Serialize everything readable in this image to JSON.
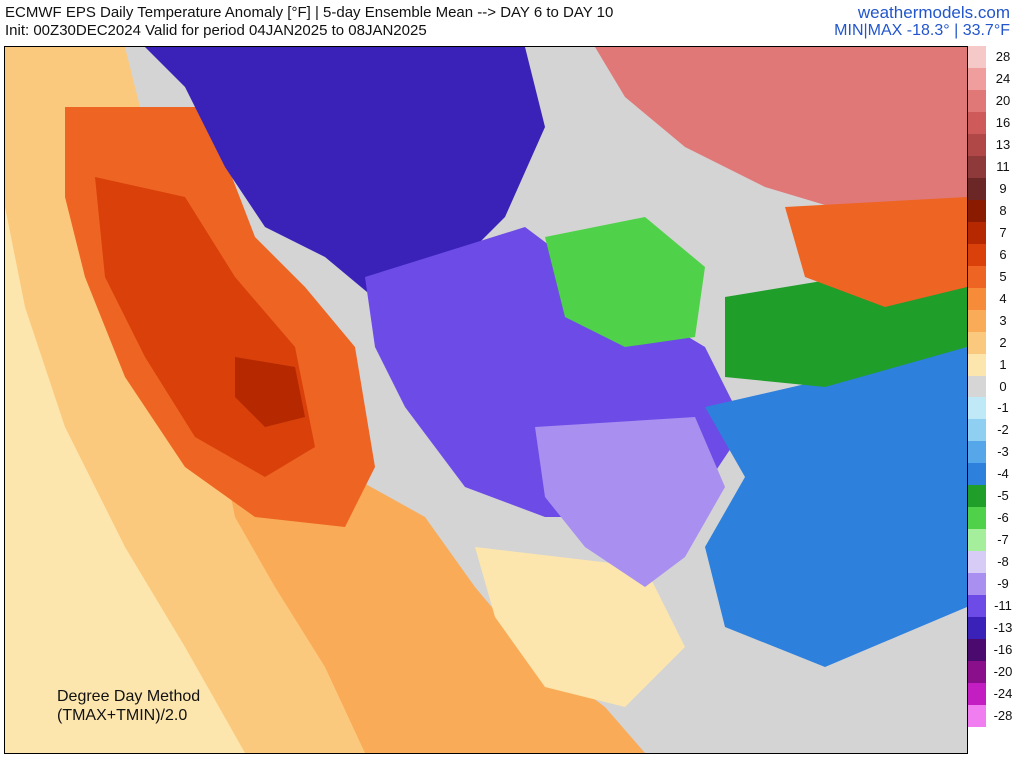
{
  "header": {
    "title_line1": "ECMWF EPS Daily Temperature Anomaly [°F] | 5-day Ensemble Mean --> DAY 6 to DAY 10",
    "title_line2": "Init: 00Z30DEC2024 Valid for period 04JAN2025 to 08JAN2025",
    "site": "weathermodels.com",
    "min_max": "MIN|MAX -18.3° | 33.7°F"
  },
  "method": {
    "line1": "Degree Day Method",
    "line2": "(TMAX+TMIN)/2.0"
  },
  "legend": {
    "unit": "°F",
    "entries": [
      {
        "label": "28",
        "color": "#f6c9c9"
      },
      {
        "label": "24",
        "color": "#ef9d9d"
      },
      {
        "label": "20",
        "color": "#e07878"
      },
      {
        "label": "16",
        "color": "#cf5a5a"
      },
      {
        "label": "13",
        "color": "#b04848"
      },
      {
        "label": "11",
        "color": "#8f3a3a"
      },
      {
        "label": "9",
        "color": "#6b2626"
      },
      {
        "label": "8",
        "color": "#8a1a00"
      },
      {
        "label": "7",
        "color": "#b52800"
      },
      {
        "label": "6",
        "color": "#d9400a"
      },
      {
        "label": "5",
        "color": "#ee6422"
      },
      {
        "label": "4",
        "color": "#f68b3a"
      },
      {
        "label": "3",
        "color": "#f9ab57"
      },
      {
        "label": "2",
        "color": "#fbc97e"
      },
      {
        "label": "1",
        "color": "#fce6ad"
      },
      {
        "label": "0",
        "color": "#d6d6d6"
      },
      {
        "label": "-1",
        "color": "#bfe9f7"
      },
      {
        "label": "-2",
        "color": "#8ecff2"
      },
      {
        "label": "-3",
        "color": "#56a6ea"
      },
      {
        "label": "-4",
        "color": "#2e80dd"
      },
      {
        "label": "-5",
        "color": "#1f9e2a"
      },
      {
        "label": "-6",
        "color": "#4fd24a"
      },
      {
        "label": "-7",
        "color": "#a5ef9c"
      },
      {
        "label": "-8",
        "color": "#d6ccf5"
      },
      {
        "label": "-9",
        "color": "#a88ff0"
      },
      {
        "label": "-11",
        "color": "#6d4be6"
      },
      {
        "label": "-13",
        "color": "#3a22b8"
      },
      {
        "label": "-16",
        "color": "#4a0a6e"
      },
      {
        "label": "-20",
        "color": "#8a0f8a"
      },
      {
        "label": "-24",
        "color": "#c21ec2"
      },
      {
        "label": "-28",
        "color": "#f07ef0"
      }
    ]
  },
  "map_regions": [
    {
      "name": "pacific-warm-band",
      "color": "#fce6ad"
    },
    {
      "name": "pacific-coast-mild",
      "color": "#fbc97e"
    },
    {
      "name": "western-us-warm",
      "color": "#ee6422"
    },
    {
      "name": "western-us-hot",
      "color": "#d9400a"
    },
    {
      "name": "great-basin-peak",
      "color": "#b52800"
    },
    {
      "name": "mexico-warm",
      "color": "#f9ab57"
    },
    {
      "name": "gulf-mild",
      "color": "#fce6ad"
    },
    {
      "name": "northern-plains-cold",
      "color": "#3a22b8"
    },
    {
      "name": "central-us-cold",
      "color": "#6d4be6"
    },
    {
      "name": "southeast-cool",
      "color": "#a88ff0"
    },
    {
      "name": "great-lakes-green",
      "color": "#4fd24a"
    },
    {
      "name": "atlantic-blue",
      "color": "#2e80dd"
    },
    {
      "name": "canada-arctic-warm",
      "color": "#e07878"
    },
    {
      "name": "quebec-warm",
      "color": "#ee6422"
    },
    {
      "name": "atlantic-canada-green",
      "color": "#1f9e2a"
    }
  ]
}
